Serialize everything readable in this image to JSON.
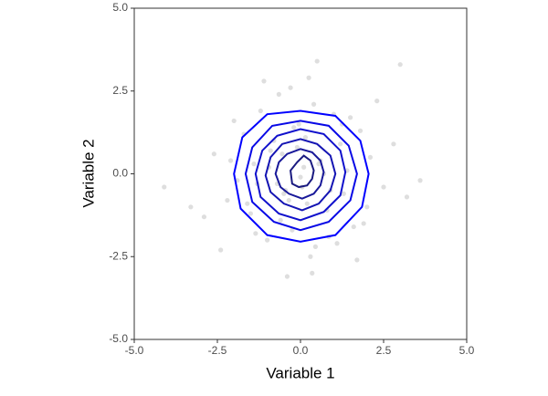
{
  "chart_data": {
    "type": "scatter-density",
    "x_label": "Variable 1",
    "y_label": "Variable 2",
    "xlim": [
      -5,
      5
    ],
    "ylim": [
      -5,
      5
    ],
    "xticks": [
      {
        "value": -5,
        "label": "-5.0"
      },
      {
        "value": -2.5,
        "label": "-2.5"
      },
      {
        "value": 0,
        "label": "0.0"
      },
      {
        "value": 2.5,
        "label": "2.5"
      },
      {
        "value": 5,
        "label": "5.0"
      }
    ],
    "yticks": [
      {
        "value": -5,
        "label": "-5.0"
      },
      {
        "value": -2.5,
        "label": "-2.5"
      },
      {
        "value": 0,
        "label": "0.0"
      },
      {
        "value": 2.5,
        "label": "2.5"
      },
      {
        "value": 5,
        "label": "5.0"
      }
    ],
    "points": {
      "color": "#bdbdbd",
      "x": [
        0.1,
        -0.5,
        1.2,
        -1.3,
        0.8,
        -0.2,
        2.1,
        -2.2,
        0.4,
        -0.9,
        1.6,
        -1.7,
        0.0,
        0.6,
        -0.6,
        1.0,
        -1.0,
        2.5,
        -2.6,
        0.3,
        -0.3,
        1.4,
        -1.5,
        0.9,
        -0.8,
        0.2,
        -0.1,
        1.8,
        -1.9,
        3.2,
        -4.1,
        0.5,
        -0.4,
        1.1,
        -1.2,
        0.7,
        -0.7,
        2.8,
        -2.9,
        0.15,
        -0.25,
        1.3,
        -1.4,
        0.05,
        -0.05,
        1.9,
        -2.0,
        3.6,
        -3.3,
        0.45,
        -0.55,
        2.3,
        -2.4,
        1.5,
        -1.6,
        0.35,
        -0.65,
        1.7,
        -1.1,
        0.85,
        -0.95,
        2.0,
        -2.1,
        0.25,
        -0.35,
        1.25,
        -1.35,
        0.55,
        -0.45,
        3.0
      ],
      "y": [
        0.2,
        -0.6,
        0.9,
        -0.3,
        -1.1,
        1.4,
        0.5,
        -0.8,
        2.1,
        0.7,
        -1.6,
        1.2,
        -0.1,
        0.4,
        -1.4,
        1.8,
        -2.0,
        -0.4,
        0.6,
        -2.5,
        2.6,
        0.1,
        -1.2,
        -0.5,
        1.0,
        -0.9,
        0.8,
        1.3,
        -0.2,
        -0.7,
        -0.4,
        3.4,
        -3.1,
        -2.1,
        1.9,
        0.0,
        -0.3,
        0.9,
        -1.3,
        1.1,
        -1.7,
        -0.6,
        0.3,
        -0.4,
        1.5,
        -1.5,
        1.6,
        -0.2,
        -1.0,
        -2.2,
        0.6,
        2.2,
        -2.3,
        1.7,
        -0.9,
        -3.0,
        2.4,
        -2.6,
        2.8,
        -1.9,
        0.2,
        -1.0,
        0.4,
        2.9,
        -0.8,
        1.5,
        -1.8,
        0.3,
        -0.5,
        3.3
      ]
    },
    "contours": [
      {
        "color": "#0000ff",
        "x": [
          2.05,
          1.8,
          1.05,
          0,
          -1.0,
          -1.75,
          -2.0,
          -1.8,
          -1.0,
          0,
          1.05,
          1.85
        ],
        "y": [
          0,
          1.0,
          1.75,
          1.9,
          1.8,
          1.1,
          0,
          -1.05,
          -1.85,
          -2.05,
          -1.85,
          -1.0
        ]
      },
      {
        "color": "#0808e6",
        "x": [
          1.7,
          1.45,
          0.85,
          0,
          -0.85,
          -1.45,
          -1.65,
          -1.45,
          -0.8,
          0,
          0.85,
          1.5
        ],
        "y": [
          0,
          0.85,
          1.45,
          1.6,
          1.45,
          0.8,
          0,
          -0.85,
          -1.45,
          -1.7,
          -1.45,
          -0.8
        ]
      },
      {
        "color": "#1010cc",
        "x": [
          1.35,
          1.2,
          0.7,
          0,
          -0.7,
          -1.15,
          -1.35,
          -1.2,
          -0.65,
          0,
          0.7,
          1.2
        ],
        "y": [
          0.05,
          0.7,
          1.2,
          1.35,
          1.15,
          0.7,
          0,
          -0.7,
          -1.2,
          -1.4,
          -1.15,
          -0.65
        ]
      },
      {
        "color": "#1414b3",
        "x": [
          1.05,
          0.9,
          0.5,
          0,
          -0.55,
          -0.9,
          -1.05,
          -0.9,
          -0.5,
          0.05,
          0.55,
          0.9
        ],
        "y": [
          0,
          0.55,
          0.9,
          1.05,
          0.9,
          0.5,
          -0.05,
          -0.55,
          -0.9,
          -1.1,
          -0.9,
          -0.5
        ]
      },
      {
        "color": "#181899",
        "x": [
          0.7,
          0.6,
          0.35,
          0,
          -0.4,
          -0.65,
          -0.75,
          -0.6,
          -0.35,
          0.05,
          0.4,
          0.6
        ],
        "y": [
          0.05,
          0.4,
          0.65,
          0.75,
          0.6,
          0.35,
          0,
          -0.4,
          -0.6,
          -0.75,
          -0.6,
          -0.35
        ]
      },
      {
        "color": "#1a1a80",
        "x": [
          0.4,
          0.3,
          0.1,
          -0.1,
          -0.3,
          -0.25,
          -0.05,
          0.2,
          0.35
        ],
        "y": [
          0.1,
          0.4,
          0.55,
          0.35,
          0.1,
          -0.3,
          -0.4,
          -0.35,
          -0.15
        ]
      }
    ]
  }
}
